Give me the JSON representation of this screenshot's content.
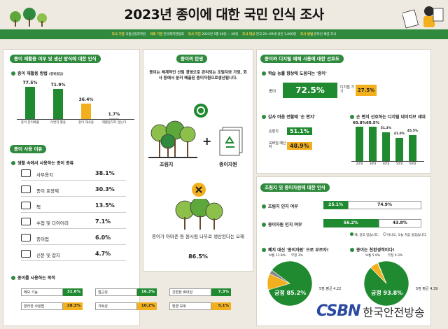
{
  "title": "2023년 종이에 대한 국민 인식 조사",
  "infobar": [
    {
      "k": "조사 기관",
      "v": "국립산림과학원"
    },
    {
      "k": "의뢰 기관",
      "v": "한국제지연합회"
    },
    {
      "k": "조사 기간",
      "v": "2023년 5월 26일 ~ 28일"
    },
    {
      "k": "조사 대상",
      "v": "전국 20~69세 성인 1,000명"
    },
    {
      "k": "조사 방법",
      "v": "온라인 패널 조사"
    }
  ],
  "panel_recycle": {
    "header": "종이 재활용 여부 및 생산 방식에 대한 인식",
    "sub": "종이 재활용 방법",
    "sub_note": "(중복응답)",
    "chart_data": {
      "type": "bar",
      "categories": [
        "종이 분리배출",
        "이면지 활용",
        "종이 재사용",
        "재활용하지 않는다"
      ],
      "values": [
        77.5,
        71.9,
        36.4,
        1.7
      ],
      "labels": [
        "77.5%",
        "71.9%",
        "36.4%",
        "1.7%"
      ],
      "colors": [
        "#1f8a30",
        "#1f8a30",
        "#f2b01e",
        "#bbbbbb"
      ]
    }
  },
  "panel_use": {
    "header": "종이 사용 이유",
    "sub": "생활 속에서 사용하는 종이 종류",
    "chart_data": {
      "type": "table",
      "items": [
        {
          "icon": "office-paper-icon",
          "label": "사무용지",
          "value": "38.1%"
        },
        {
          "icon": "wrapping-paper-icon",
          "label": "종이 포장재",
          "value": "30.3%"
        },
        {
          "icon": "book-icon",
          "label": "책",
          "value": "13.5%"
        },
        {
          "icon": "notebook-icon",
          "label": "수첩 및 다이어리",
          "value": "7.1%"
        },
        {
          "icon": "paper-cup-icon",
          "label": "종이컵",
          "value": "6.0%"
        },
        {
          "icon": "newspaper-icon",
          "label": "신문 및 잡지",
          "value": "4.7%"
        }
      ]
    }
  },
  "panel_purpose": {
    "sub": "종이를 사용하는 목적",
    "chart_data": {
      "type": "table",
      "items": [
        {
          "label": "메모 기능",
          "value": "31.6%",
          "color": "green"
        },
        {
          "label": "접근성",
          "value": "16.3%",
          "color": "green"
        },
        {
          "label": "간편한 휴대성",
          "value": "7.3%",
          "color": "green"
        },
        {
          "label": "편리한 사용법",
          "value": "28.3%",
          "color": "yellow"
        },
        {
          "label": "가독성",
          "value": "10.2%",
          "color": "yellow"
        },
        {
          "label": "환경 보호",
          "value": "5.1%",
          "color": "yellow"
        }
      ]
    }
  },
  "panel_birth": {
    "header": "종이의 탄생",
    "desc": "종이는 체계적인 산림 경영으로 관리되는 조림지와 가정, 회사 등에서 분리 배출된 종이자원으로생산됩니다.",
    "label_forest": "조림지",
    "label_resource": "종이자원",
    "plus": "+",
    "wrong_text": "종이가 아마존 등 원시림 나무로 생산된다는 오해",
    "wrong_value": "86.5%"
  },
  "panel_digital": {
    "header": "종이와 디지털 매체 사용에 대한 선호도",
    "q1": "학습 능률 향상에 도움되는 '종이'",
    "q1_left_label": "종이",
    "q1_left_value": "72.5%",
    "q1_right_label": "디지털 기기",
    "q1_right_value": "27.5%",
    "q2": "감사 마음 전할때 '손 편지'",
    "q2_items": [
      {
        "label": "손편지",
        "value": "51.1%"
      },
      {
        "label": "모바일 메신저",
        "value": "48.9%"
      }
    ],
    "q3": "손 편지 선호하는 디지털 네이티브 세대",
    "chart_data": {
      "type": "bar",
      "categories": [
        "20대",
        "30대",
        "40대",
        "50대",
        "60대"
      ],
      "values": [
        60.8,
        60.5,
        51.3,
        41.0,
        45.5
      ],
      "labels": [
        "60.8%",
        "60.5%",
        "51.3%",
        "41.0%",
        "45.5%"
      ],
      "ylim": [
        0,
        100
      ]
    }
  },
  "panel_perception": {
    "header": "조림지 및 종이자원에 대한 인식",
    "q1": "조림지 인지 여부",
    "q1_yes": "25.1%",
    "q1_no": "74.9%",
    "q2": "종이자원 인지 여부",
    "q2_yes": "56.2%",
    "q2_no": "43.8%",
    "legend_yes": "예, 알고 있습니다.",
    "legend_no": "아니오, 오늘 처음 들었습니다.",
    "pie1_title": "폐지 대신 '종이자원' 으로 부르자!",
    "pie2_title": "종이는 친환경적이다!",
    "chart_data": [
      {
        "type": "pie",
        "slices": [
          {
            "name": "긍정",
            "value": 85.2,
            "label": "긍정 85.2%"
          },
          {
            "name": "보통",
            "value": 11.8,
            "label": "보통 11.8%"
          },
          {
            "name": "부정",
            "value": 3.0,
            "label": "부정 3%"
          }
        ],
        "score": "5점 평균 4.22"
      },
      {
        "type": "pie",
        "slices": [
          {
            "name": "긍정",
            "value": 93.8,
            "label": "긍정 93.8%"
          },
          {
            "name": "보통",
            "value": 5.9,
            "label": "보통 5.9%"
          },
          {
            "name": "부정",
            "value": 0.3,
            "label": "부정 0.3%"
          }
        ],
        "score": "5점 평균 4.39"
      }
    ]
  },
  "logo": {
    "mark": "CSBN",
    "text": "한국안전방송"
  },
  "colors": {
    "green": "#1f8a30",
    "yellow": "#f2b01e",
    "gray": "#bbbbbb",
    "header": "#2f8a3d"
  }
}
